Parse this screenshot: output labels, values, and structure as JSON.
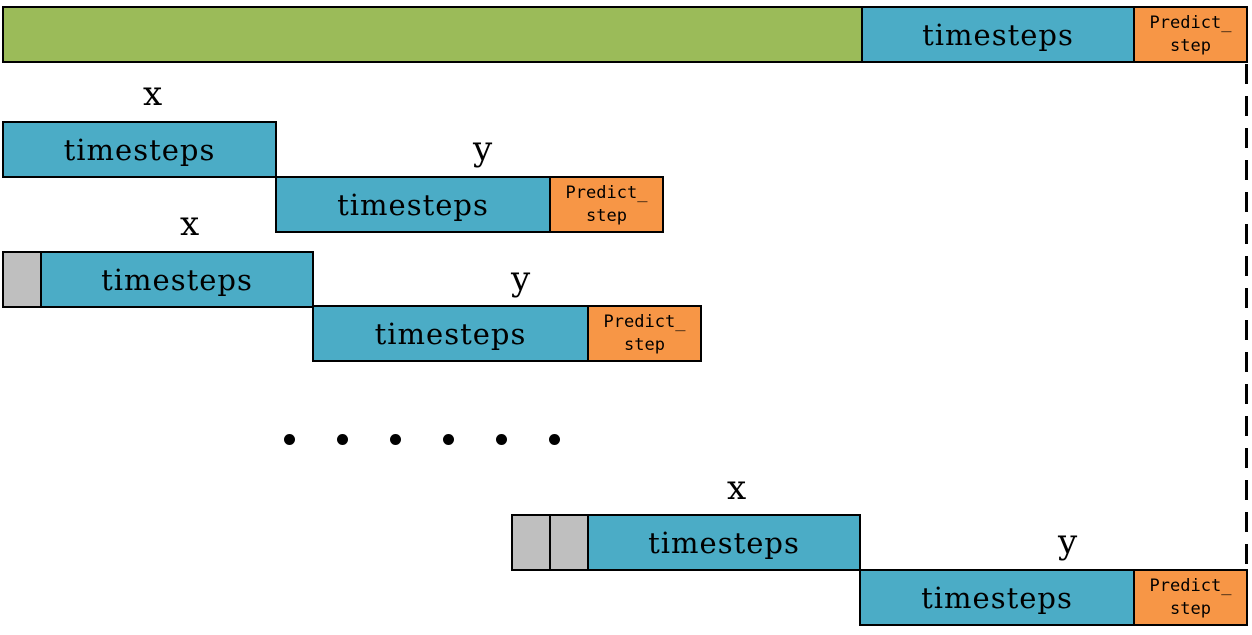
{
  "top_row": {
    "timesteps_label": "timesteps",
    "predict_label_1": "Predict_",
    "predict_label_2": "step"
  },
  "window_1": {
    "x_label": "x",
    "y_label": "y",
    "x_timesteps": "timesteps",
    "y_timesteps": "timesteps",
    "predict_label_1": "Predict_",
    "predict_label_2": "step"
  },
  "window_2": {
    "x_label": "x",
    "y_label": "y",
    "x_timesteps": "timesteps",
    "y_timesteps": "timesteps",
    "predict_label_1": "Predict_",
    "predict_label_2": "step"
  },
  "window_last": {
    "x_label": "x",
    "y_label": "y",
    "x_timesteps": "timesteps",
    "y_timesteps": "timesteps",
    "predict_label_1": "Predict_",
    "predict_label_2": "step"
  },
  "colors": {
    "history": "#9bbb59",
    "timesteps": "#4bacc6",
    "predict": "#f79646",
    "shift": "#bfbfbf"
  }
}
